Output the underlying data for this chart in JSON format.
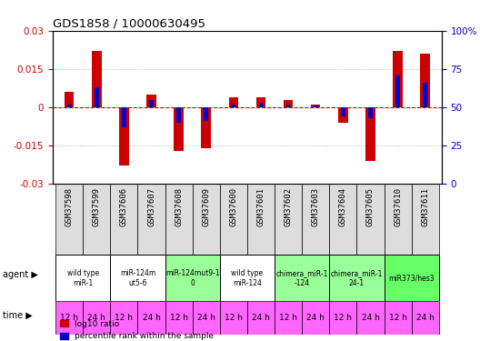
{
  "title": "GDS1858 / 10000630495",
  "samples": [
    "GSM37598",
    "GSM37599",
    "GSM37606",
    "GSM37607",
    "GSM37608",
    "GSM37609",
    "GSM37600",
    "GSM37601",
    "GSM37602",
    "GSM37603",
    "GSM37604",
    "GSM37605",
    "GSM37610",
    "GSM37611"
  ],
  "log10_ratio": [
    0.006,
    0.022,
    -0.023,
    0.005,
    -0.017,
    -0.016,
    0.004,
    0.004,
    0.003,
    0.001,
    -0.006,
    -0.021,
    0.022,
    0.021
  ],
  "percentile_rank": [
    52,
    63,
    37,
    55,
    40,
    41,
    52,
    53,
    52,
    51,
    44,
    43,
    71,
    66
  ],
  "ylim": [
    -0.03,
    0.03
  ],
  "yticks_left": [
    -0.03,
    -0.015,
    0,
    0.015,
    0.03
  ],
  "yticks_right": [
    0,
    25,
    50,
    75,
    100
  ],
  "agents": [
    {
      "label": "wild type\nmiR-1",
      "cols": [
        0,
        1
      ],
      "color": "#ffffff"
    },
    {
      "label": "miR-124m\nut5-6",
      "cols": [
        2,
        3
      ],
      "color": "#ffffff"
    },
    {
      "label": "miR-124mut9-1\n0",
      "cols": [
        4,
        5
      ],
      "color": "#99ff99"
    },
    {
      "label": "wild type\nmiR-124",
      "cols": [
        6,
        7
      ],
      "color": "#ffffff"
    },
    {
      "label": "chimera_miR-1\n-124",
      "cols": [
        8,
        9
      ],
      "color": "#99ff99"
    },
    {
      "label": "chimera_miR-1\n24-1",
      "cols": [
        10,
        11
      ],
      "color": "#99ff99"
    },
    {
      "label": "miR373/hes3",
      "cols": [
        12,
        13
      ],
      "color": "#66ff66"
    }
  ],
  "times": [
    "12 h",
    "24 h",
    "12 h",
    "24 h",
    "12 h",
    "24 h",
    "12 h",
    "24 h",
    "12 h",
    "24 h",
    "12 h",
    "24 h",
    "12 h",
    "24 h"
  ],
  "time_color": "#ff66ff",
  "bar_color_red": "#cc0000",
  "bar_color_blue": "#0000cc",
  "bg_color": "#ffffff",
  "grid_color": "#888888",
  "ytick_left_color": "#cc0000",
  "ytick_right_color": "#0000cc"
}
